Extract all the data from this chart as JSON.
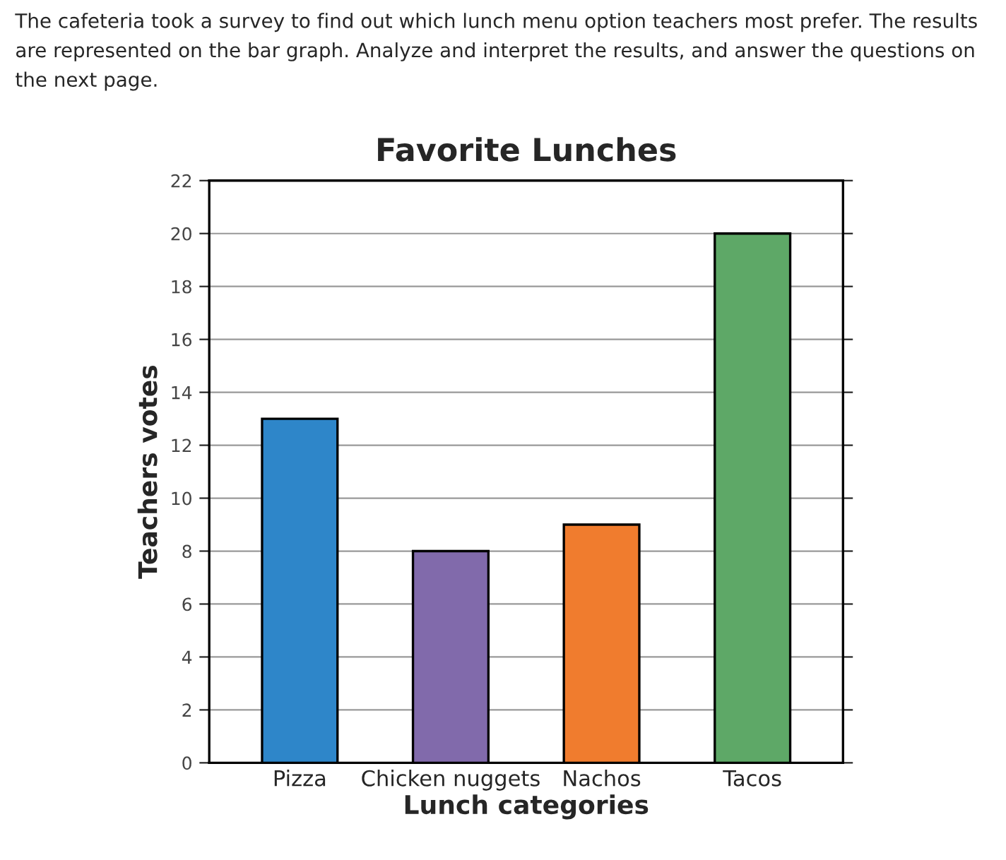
{
  "chart_data": {
    "type": "bar",
    "title": "Favorite Lunches",
    "annotations": [
      "The cafeteria took a survey to find out which lunch menu option teachers most prefer. The results are represented on the bar graph. Analyze and interpret the results, and answer the questions on the next page."
    ],
    "xlabel": "Lunch categories",
    "ylabel": "Teachers votes",
    "categories": [
      "Pizza",
      "Chicken nuggets",
      "Nachos",
      "Tacos"
    ],
    "values": [
      13,
      8,
      9,
      20
    ],
    "colors": [
      "#2e86c9",
      "#816aab",
      "#f07c2e",
      "#5ea867"
    ],
    "ylim": [
      0,
      22
    ],
    "yticks": [
      0,
      2,
      4,
      6,
      8,
      10,
      12,
      14,
      16,
      18,
      20,
      22
    ],
    "grid": "y",
    "legend": false
  }
}
